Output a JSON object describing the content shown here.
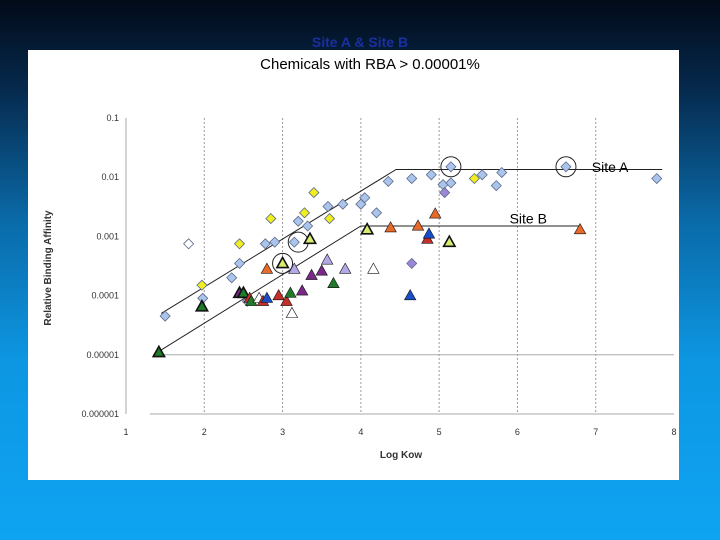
{
  "slide": {
    "title": "Site A & Site B",
    "subtitle": "Chemicals with RBA > 0.00001%"
  },
  "chart_data": {
    "type": "scatter",
    "xlabel": "Log Kow",
    "ylabel": "Relative Binding Affinity",
    "xlim": [
      1,
      8
    ],
    "ylim": [
      1e-06,
      0.1
    ],
    "y_scale": "log",
    "x_ticks": [
      "1",
      "2",
      "3",
      "4",
      "5",
      "6",
      "7",
      "8"
    ],
    "y_ticks": [
      "0.1",
      "0.01",
      "0.001",
      "0.0001",
      "0.00001",
      "0.000001"
    ],
    "y_tick_values": [
      0.1,
      0.01,
      0.001,
      0.0001,
      1e-05,
      1e-06
    ],
    "vertical_gridlines": [
      2,
      3,
      4,
      5,
      6,
      7
    ],
    "colors": {
      "diamond_light": "#aac4ec",
      "diamond_yellow": "#f2ee1e",
      "diamond_purple": "#9b86d8",
      "tri_green": "#1f7a2a",
      "tri_orange": "#e86a2a",
      "tri_red": "#c42f2a",
      "tri_purple": "#7a2888",
      "tri_blue": "#1a4ec8",
      "tri_lilac": "#b4a8e6",
      "tri_white": "#ffffff",
      "tri_lime": "#d6ee70",
      "stroke": "#333333"
    },
    "series": [
      {
        "name": "Site A",
        "marker": "diamond",
        "points": [
          {
            "x": 1.5,
            "y": 4.5e-05,
            "fill": "diamond_light"
          },
          {
            "x": 1.8,
            "y": 0.00075,
            "fill": "diamond_white"
          },
          {
            "x": 1.97,
            "y": 0.00015,
            "fill": "diamond_yellow"
          },
          {
            "x": 1.98,
            "y": 9e-05,
            "fill": "diamond_light"
          },
          {
            "x": 2.35,
            "y": 0.0002,
            "fill": "diamond_light"
          },
          {
            "x": 2.45,
            "y": 0.00075,
            "fill": "diamond_yellow"
          },
          {
            "x": 2.45,
            "y": 0.00035,
            "fill": "diamond_light"
          },
          {
            "x": 2.55,
            "y": 8e-05,
            "fill": "diamond_light"
          },
          {
            "x": 2.78,
            "y": 0.00075,
            "fill": "diamond_light"
          },
          {
            "x": 2.85,
            "y": 0.002,
            "fill": "diamond_yellow"
          },
          {
            "x": 2.9,
            "y": 0.0008,
            "fill": "diamond_light"
          },
          {
            "x": 3.15,
            "y": 0.0008,
            "fill": "diamond_light"
          },
          {
            "x": 3.2,
            "y": 0.0018,
            "fill": "diamond_light"
          },
          {
            "x": 3.28,
            "y": 0.0025,
            "fill": "diamond_yellow"
          },
          {
            "x": 3.32,
            "y": 0.0015,
            "fill": "diamond_light"
          },
          {
            "x": 3.4,
            "y": 0.0055,
            "fill": "diamond_yellow"
          },
          {
            "x": 3.58,
            "y": 0.0032,
            "fill": "diamond_light"
          },
          {
            "x": 3.6,
            "y": 0.002,
            "fill": "diamond_yellow"
          },
          {
            "x": 3.77,
            "y": 0.0035,
            "fill": "diamond_light"
          },
          {
            "x": 4.0,
            "y": 0.0035,
            "fill": "diamond_light"
          },
          {
            "x": 4.05,
            "y": 0.0045,
            "fill": "diamond_light"
          },
          {
            "x": 4.2,
            "y": 0.0025,
            "fill": "diamond_light"
          },
          {
            "x": 4.35,
            "y": 0.0085,
            "fill": "diamond_light"
          },
          {
            "x": 4.65,
            "y": 0.0095,
            "fill": "diamond_light"
          },
          {
            "x": 4.65,
            "y": 0.00035,
            "fill": "diamond_purple"
          },
          {
            "x": 4.9,
            "y": 0.011,
            "fill": "diamond_light"
          },
          {
            "x": 5.05,
            "y": 0.0075,
            "fill": "diamond_light"
          },
          {
            "x": 5.07,
            "y": 0.0055,
            "fill": "diamond_purple"
          },
          {
            "x": 5.15,
            "y": 0.015,
            "fill": "diamond_light"
          },
          {
            "x": 5.15,
            "y": 0.008,
            "fill": "diamond_light"
          },
          {
            "x": 5.45,
            "y": 0.0095,
            "fill": "diamond_yellow"
          },
          {
            "x": 5.55,
            "y": 0.011,
            "fill": "diamond_light"
          },
          {
            "x": 5.73,
            "y": 0.0072,
            "fill": "diamond_light"
          },
          {
            "x": 5.8,
            "y": 0.012,
            "fill": "diamond_light"
          },
          {
            "x": 6.62,
            "y": 0.015,
            "fill": "diamond_light"
          },
          {
            "x": 7.78,
            "y": 0.0095,
            "fill": "diamond_light"
          }
        ]
      },
      {
        "name": "Site B",
        "marker": "triangle",
        "points": [
          {
            "x": 1.42,
            "y": 1.1e-05,
            "fill": "tri_green",
            "thick": true
          },
          {
            "x": 1.97,
            "y": 6.5e-05,
            "fill": "tri_green",
            "thick": true
          },
          {
            "x": 2.45,
            "y": 0.00011,
            "fill": "tri_purple",
            "thick": true
          },
          {
            "x": 2.5,
            "y": 0.00011,
            "fill": "tri_green",
            "thick": true
          },
          {
            "x": 2.58,
            "y": 9e-05,
            "fill": "tri_red"
          },
          {
            "x": 2.6,
            "y": 8e-05,
            "fill": "tri_green"
          },
          {
            "x": 2.7,
            "y": 9e-05,
            "fill": "tri_white"
          },
          {
            "x": 2.75,
            "y": 8e-05,
            "fill": "tri_red"
          },
          {
            "x": 2.8,
            "y": 9e-05,
            "fill": "tri_blue"
          },
          {
            "x": 2.8,
            "y": 0.00028,
            "fill": "tri_orange"
          },
          {
            "x": 2.95,
            "y": 0.0001,
            "fill": "tri_red"
          },
          {
            "x": 3.0,
            "y": 0.00035,
            "fill": "tri_lime",
            "thick": true
          },
          {
            "x": 3.05,
            "y": 8e-05,
            "fill": "tri_red"
          },
          {
            "x": 3.1,
            "y": 0.00011,
            "fill": "tri_green"
          },
          {
            "x": 3.12,
            "y": 5e-05,
            "fill": "tri_white"
          },
          {
            "x": 3.15,
            "y": 0.00028,
            "fill": "tri_lilac"
          },
          {
            "x": 3.25,
            "y": 0.00012,
            "fill": "tri_purple"
          },
          {
            "x": 3.35,
            "y": 0.0009,
            "fill": "tri_lime",
            "thick": true
          },
          {
            "x": 3.37,
            "y": 0.00022,
            "fill": "tri_purple"
          },
          {
            "x": 3.5,
            "y": 0.00026,
            "fill": "tri_purple"
          },
          {
            "x": 3.57,
            "y": 0.0004,
            "fill": "tri_lilac"
          },
          {
            "x": 3.65,
            "y": 0.00016,
            "fill": "tri_green"
          },
          {
            "x": 3.8,
            "y": 0.00028,
            "fill": "tri_lilac"
          },
          {
            "x": 4.08,
            "y": 0.0013,
            "fill": "tri_lime",
            "thick": true
          },
          {
            "x": 4.16,
            "y": 0.00028,
            "fill": "tri_white"
          },
          {
            "x": 4.38,
            "y": 0.0014,
            "fill": "tri_orange"
          },
          {
            "x": 4.63,
            "y": 0.0001,
            "fill": "tri_blue"
          },
          {
            "x": 4.73,
            "y": 0.0015,
            "fill": "tri_orange"
          },
          {
            "x": 4.85,
            "y": 0.0009,
            "fill": "tri_red"
          },
          {
            "x": 4.87,
            "y": 0.0011,
            "fill": "tri_blue"
          },
          {
            "x": 4.95,
            "y": 0.0024,
            "fill": "tri_orange"
          },
          {
            "x": 5.13,
            "y": 0.0008,
            "fill": "tri_lime",
            "thick": true
          },
          {
            "x": 6.8,
            "y": 0.0013,
            "fill": "tri_orange"
          }
        ]
      }
    ],
    "trend_lines": [
      {
        "name": "Site A",
        "points": [
          [
            1.45,
            5e-05
          ],
          [
            4.45,
            0.0135
          ],
          [
            7.85,
            0.0135
          ]
        ]
      },
      {
        "name": "Site B",
        "points": [
          [
            1.35,
            1e-05
          ],
          [
            4.0,
            0.0015
          ],
          [
            6.8,
            0.0015
          ]
        ]
      }
    ],
    "highlight_circles": [
      {
        "x": 5.15,
        "y": 0.015
      },
      {
        "x": 6.62,
        "y": 0.015
      },
      {
        "x": 3.0,
        "y": 0.00035
      },
      {
        "x": 3.2,
        "y": 0.0008
      }
    ],
    "annotations": [
      {
        "text": "Site A",
        "x": 6.95,
        "y": 0.015
      },
      {
        "text": "Site B",
        "x": 5.9,
        "y": 0.002
      }
    ]
  }
}
